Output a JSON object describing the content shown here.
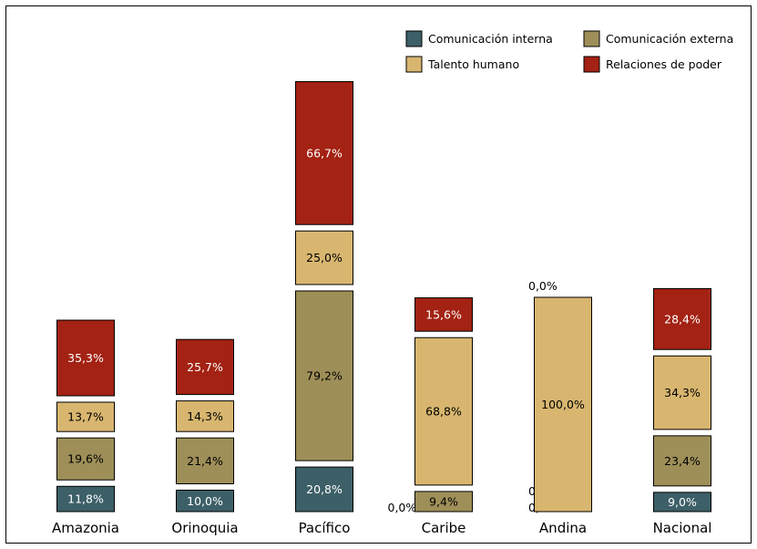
{
  "colors": {
    "Comunicación interna": "#3d5f67",
    "Comunicación externa": "#9e8f58",
    "Talento humano": "#d8b66f",
    "Relaciones de poder": "#a32213",
    "label_light": "#ffffff",
    "label_dark": "#000000"
  },
  "chart_data": {
    "type": "bar",
    "stacked": true,
    "categories": [
      "Amazonia",
      "Orinoquia",
      "Pacífico",
      "Caribe",
      "Andina",
      "Nacional"
    ],
    "series": [
      {
        "name": "Comunicación interna",
        "values": [
          11.8,
          10.0,
          20.8,
          0.0,
          0.0,
          9.0
        ],
        "labels": [
          "11,8%",
          "10,0%",
          "20,8%",
          "0,0%",
          "0,0%",
          "9,0%"
        ]
      },
      {
        "name": "Comunicación externa",
        "values": [
          19.6,
          21.4,
          79.2,
          9.4,
          0.0,
          23.4
        ],
        "labels": [
          "19,6%",
          "21,4%",
          "79,2%",
          "9,4%",
          "0,0%",
          "23,4%"
        ]
      },
      {
        "name": "Talento humano",
        "values": [
          13.7,
          14.3,
          25.0,
          68.8,
          100.0,
          34.3
        ],
        "labels": [
          "13,7%",
          "14,3%",
          "25,0%",
          "68,8%",
          "100,0%",
          "34,3%"
        ]
      },
      {
        "name": "Relaciones de poder",
        "values": [
          35.3,
          25.7,
          66.7,
          15.6,
          0.0,
          28.4
        ],
        "labels": [
          "35,3%",
          "25,7%",
          "66,7%",
          "15,6%",
          "0,0%",
          "28,4%"
        ]
      }
    ],
    "legend": [
      "Comunicación interna",
      "Comunicación externa",
      "Talento humano",
      "Relaciones de poder"
    ],
    "legend_position": "top-right",
    "grid": false,
    "title": "",
    "xlabel": "",
    "ylabel": ""
  }
}
